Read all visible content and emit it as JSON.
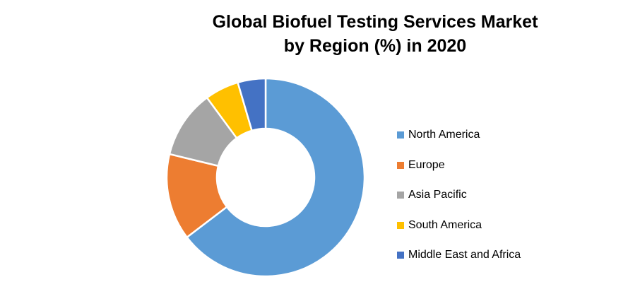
{
  "chart_data": {
    "type": "pie",
    "variant": "donut",
    "title_lines": [
      "Global Biofuel Testing Services Market",
      "by Region (%) in 2020"
    ],
    "legend_position": "right",
    "series": [
      {
        "name": "North America",
        "value": 64,
        "color": "#5B9BD5"
      },
      {
        "name": "Europe",
        "value": 14,
        "color": "#ED7D31"
      },
      {
        "name": "Asia Pacific",
        "value": 11,
        "color": "#A5A5A5"
      },
      {
        "name": "South America",
        "value": 5.5,
        "color": "#FFC000"
      },
      {
        "name": "Middle East and Africa",
        "value": 4.5,
        "color": "#4472C4"
      }
    ]
  }
}
